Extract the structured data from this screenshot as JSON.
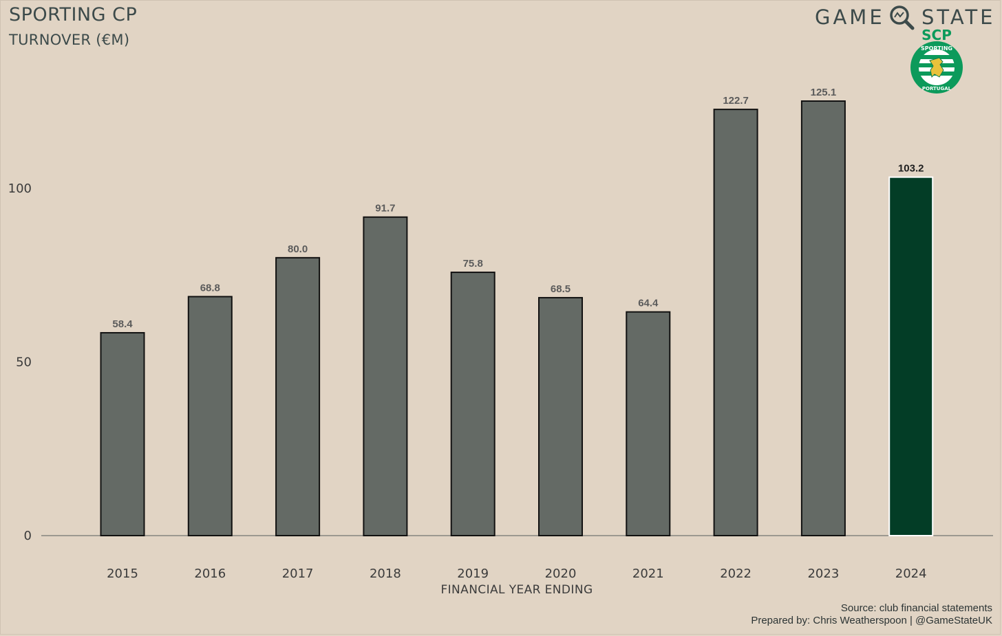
{
  "header": {
    "title": "SPORTING CP",
    "subtitle": "TURNOVER (€M)"
  },
  "brand": {
    "word1": "GAME",
    "word2": "STATE",
    "icon": "magnifier-icon"
  },
  "crest": {
    "top_text": "SCP",
    "ring_text_top": "SPORTING",
    "ring_text_bottom": "PORTUGAL",
    "icon": "lion-crest-icon"
  },
  "footer": {
    "source": "Source: club financial statements",
    "prepared": "Prepared by: Chris Weatherspoon | @GameStateUK"
  },
  "colors": {
    "background": "#e1d4c4",
    "bar_default": "#646a65",
    "bar_highlight": "#033d26",
    "bar_stroke": "#111111",
    "axis_line": "#9c9890",
    "label_default": "#5b5b5b",
    "label_highlight": "#1e1e1e"
  },
  "chart_data": {
    "type": "bar",
    "categories": [
      "2015",
      "2016",
      "2017",
      "2018",
      "2019",
      "2020",
      "2021",
      "2022",
      "2023",
      "2024"
    ],
    "values": [
      58.4,
      68.8,
      80.0,
      91.7,
      75.8,
      68.5,
      64.4,
      122.7,
      125.1,
      103.2
    ],
    "value_labels": [
      "58.4",
      "68.8",
      "80.0",
      "91.7",
      "75.8",
      "68.5",
      "64.4",
      "122.7",
      "125.1",
      "103.2"
    ],
    "highlight_category": "2024",
    "xlabel": "FINANCIAL YEAR ENDING",
    "ylabel": "",
    "yticks": [
      0,
      50,
      100
    ],
    "ylim": [
      0,
      125.1
    ],
    "grid": false
  }
}
